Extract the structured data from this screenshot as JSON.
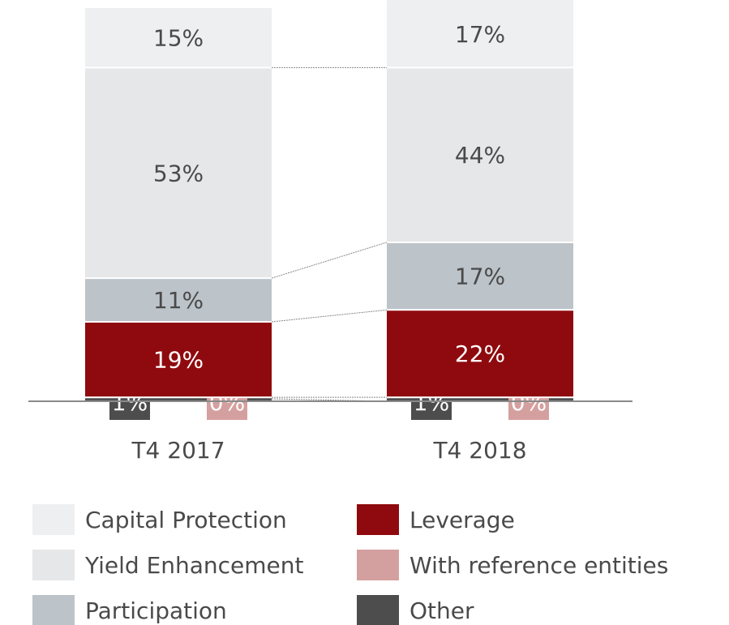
{
  "chart_data": {
    "type": "stacked_bar",
    "categories": [
      "T4 2017",
      "T4 2018"
    ],
    "ylim": [
      0,
      100
    ],
    "series": [
      {
        "name": "Other",
        "color": "#4d4d4d",
        "values": [
          1,
          1
        ],
        "value_labels": [
          "1%",
          "1%"
        ]
      },
      {
        "name": "With reference entities",
        "color": "#d4a09f",
        "values": [
          0,
          0
        ],
        "value_labels": [
          "0%",
          "0%"
        ]
      },
      {
        "name": "Leverage",
        "color": "#8f0a0e",
        "values": [
          19,
          22
        ],
        "value_labels": [
          "19%",
          "22%"
        ]
      },
      {
        "name": "Participation",
        "color": "#bcc3c9",
        "values": [
          11,
          17
        ],
        "value_labels": [
          "11%",
          "17%"
        ]
      },
      {
        "name": "Yield Enhancement",
        "color": "#e6e7e9",
        "values": [
          53,
          44
        ],
        "value_labels": [
          "53%",
          "44%"
        ]
      },
      {
        "name": "Capital Protection",
        "color": "#eeeff1",
        "values": [
          15,
          17
        ],
        "value_labels": [
          "15%",
          "17%"
        ]
      }
    ]
  }
}
